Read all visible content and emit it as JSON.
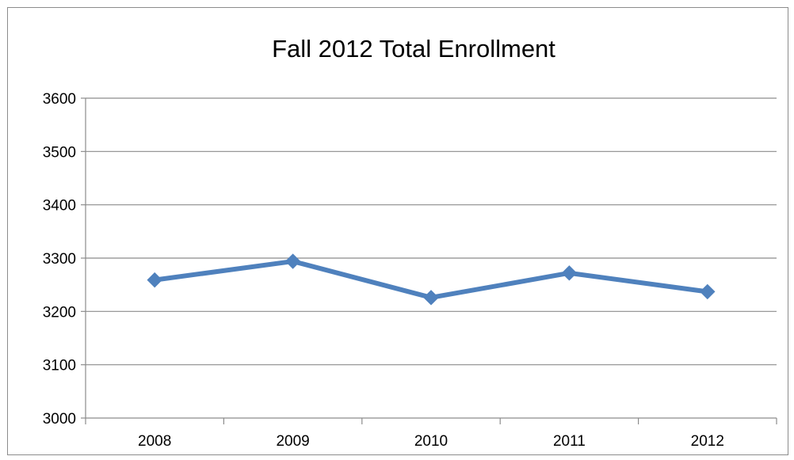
{
  "chart_data": {
    "type": "line",
    "title": "Fall 2012 Total Enrollment",
    "xlabel": "",
    "ylabel": "",
    "categories": [
      "2008",
      "2009",
      "2010",
      "2011",
      "2012"
    ],
    "series": [
      {
        "values": [
          3259,
          3294,
          3226,
          3272,
          3237
        ],
        "color": "#4F81BD",
        "marker": "diamond"
      }
    ],
    "ylim": [
      3000,
      3600
    ],
    "yticks": [
      "3000",
      "3100",
      "3200",
      "3300",
      "3400",
      "3500",
      "3600"
    ],
    "grid": true,
    "legend": "none"
  }
}
